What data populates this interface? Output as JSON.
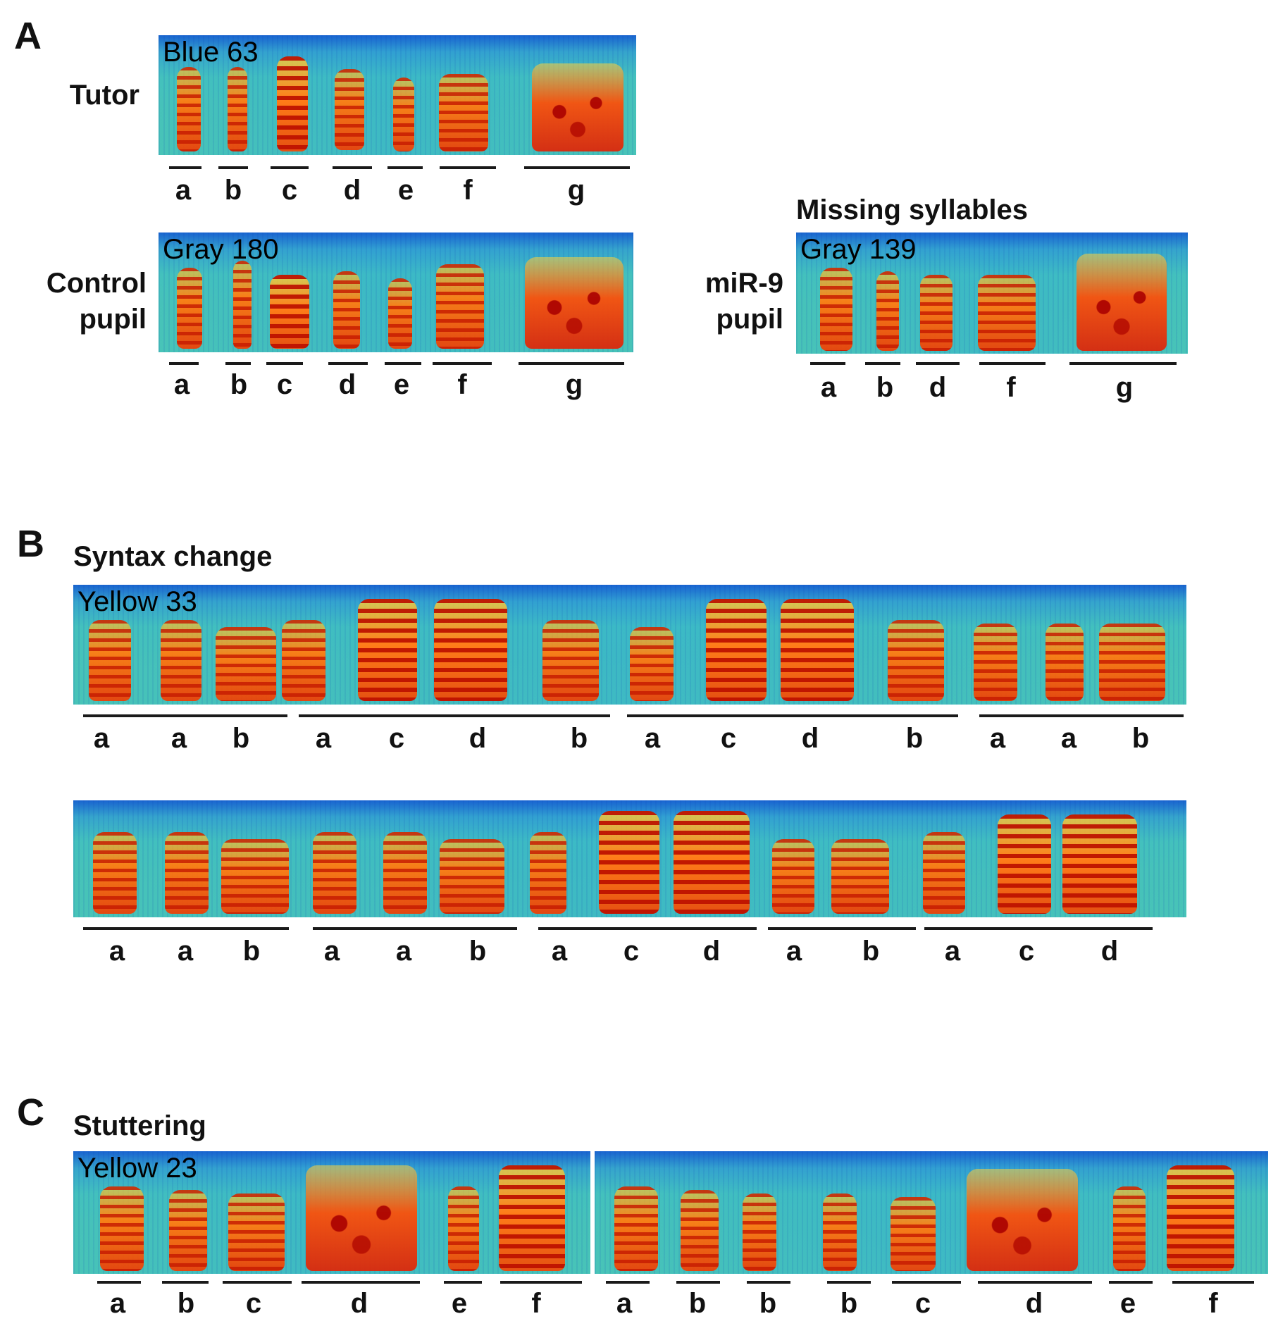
{
  "panels": {
    "A": {
      "letter": "A",
      "missing_title": "Missing syllables",
      "tutor": {
        "row_label": "Tutor",
        "spec_label": "Blue 63",
        "syllables": [
          "a",
          "b",
          "c",
          "d",
          "e",
          "f",
          "g"
        ]
      },
      "control": {
        "row_label_1": "Control",
        "row_label_2": "pupil",
        "spec_label": "Gray 180",
        "syllables": [
          "a",
          "b",
          "c",
          "d",
          "e",
          "f",
          "g"
        ]
      },
      "mir9": {
        "row_label_1": "miR-9",
        "row_label_2": "pupil",
        "spec_label": "Gray 139",
        "syllables": [
          "a",
          "b",
          "d",
          "f",
          "g"
        ]
      }
    },
    "B": {
      "letter": "B",
      "title": "Syntax change",
      "row1": {
        "spec_label": "Yellow 33",
        "syllables": [
          "a",
          "a",
          "b",
          "a",
          "c",
          "d",
          "b",
          "a",
          "c",
          "d",
          "b",
          "a",
          "a",
          "b"
        ]
      },
      "row2": {
        "syllables": [
          "a",
          "a",
          "b",
          "a",
          "a",
          "b",
          "a",
          "c",
          "d",
          "a",
          "b",
          "a",
          "c",
          "d"
        ]
      }
    },
    "C": {
      "letter": "C",
      "title": "Stuttering",
      "spec_label": "Yellow 23",
      "syllables_left": [
        "a",
        "b",
        "c",
        "d",
        "e",
        "f"
      ],
      "syllables_right": [
        "a",
        "b",
        "b",
        "b",
        "c",
        "d",
        "e",
        "f"
      ]
    }
  }
}
